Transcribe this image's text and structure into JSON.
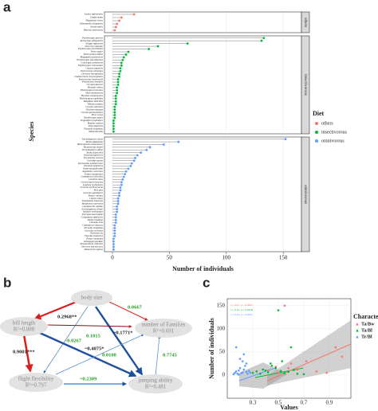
{
  "panel_labels": [
    "a",
    "b",
    "c"
  ],
  "chart_data": [
    {
      "type": "lollipop",
      "xlabel": "Number of individuals",
      "ylabel": "Species",
      "legend_title": "Diet",
      "xlim": [
        -7,
        166
      ],
      "xticks": [
        0,
        50,
        100,
        150
      ],
      "grid": true,
      "series": [
        {
          "name": "others",
          "color": "#f8766d",
          "categories": [
            "Lanius tephronotus",
            "Upupa epops",
            "Megalaima virens",
            "Arborophila rufogularis",
            "Alcedo atthis",
            "Halcyon smyrnensis"
          ],
          "values": [
            19,
            8,
            6,
            4,
            3,
            2
          ]
        },
        {
          "name": "insectivorous",
          "color": "#00ba38",
          "categories": [
            "Phylloscopus pulcher",
            "Abroscopus albogularis",
            "Alcippe nipalensis",
            "Seicercus valentini",
            "Phylloscopus trochiloides",
            "Parus major",
            "Phylloscopus affinis",
            "Rhopophilus pekinensis",
            "Phylloscopus maculipennis",
            "Culicicapa ceylonensis",
            "Phylloscopus chloronotus",
            "Cinnyris jugularis",
            "Pericrocotus ethologus",
            "Dicrurus leucophaeus",
            "Chaimarrornis leucocephalus",
            "Pericrocotus brevirostris",
            "Phoenicurus frontalis",
            "Cecropis daurica",
            "Hirundo rustica",
            "Phylloscopus inornatus",
            "Sitta himalayensis",
            "Hemixos castanonotus",
            "Phylloscopus reguloides",
            "Rhipidura albicollis",
            "Niltava sundara",
            "Cuculus saturatus",
            "Delichon dasypus",
            "Cuculus poliocephalus",
            "Picus canus",
            "Dendrocopos major",
            "Troglodytes troglodytes",
            "Regulus regulus",
            "Sitta nagaensis",
            "Ficedula strophiata",
            "Motacilla alba"
          ],
          "values": [
            133,
            131,
            66,
            40,
            32,
            14,
            12,
            10,
            9,
            8,
            8,
            7,
            7,
            6,
            6,
            5,
            5,
            5,
            4,
            4,
            4,
            3,
            3,
            3,
            3,
            2,
            2,
            2,
            2,
            2,
            1,
            1,
            1,
            1,
            1
          ]
        },
        {
          "name": "omnivorous",
          "color": "#619cff",
          "categories": [
            "Trochalopteron milnei",
            "Yuhina diademata",
            "Heterophasia melanoleuca",
            "Myzornis pyrrhoura",
            "Trochalopteron affine",
            "Yuhina flavicollis",
            "Zosterops japonicus",
            "Pycnonotus jocosus",
            "Garrulax sannio",
            "Pycnonotus xanthorrhous",
            "Dicaeum ignipectus",
            "Emberiza godlewskii",
            "Aegithalos concinnus",
            "Turdus mandarinus",
            "Carpodacus erythrinus",
            "Leiothrix lutea",
            "Corvus macrorhynchos",
            "Lophura nycthemera",
            "Urocissa erythroryncha",
            "Pica pica",
            "Garrulus glandarius",
            "Passer rutilans",
            "Chloris sinica",
            "Streptopelia chinensis",
            "Myophonus caeruleus",
            "Leptopoecile sophiae",
            "Trochalopteron elliotii",
            "Spizixos semitorques",
            "Pucrasia macrolopha",
            "Carpodacus nipalensis",
            "Turdus boulboul",
            "Columba livia",
            "Carpodacus vinaceus",
            "Prunella strophiata",
            "Garrulax ocellatus",
            "Emberiza cia",
            "Fulvetta vinipectus",
            "Passer montanus",
            "Aethopyga gouldiae",
            "Pomatorhinus ruficollis",
            "Dicrurus macrocercus",
            "Tadorna ferruginea"
          ],
          "values": [
            152,
            58,
            45,
            33,
            30,
            25,
            22,
            20,
            19,
            17,
            16,
            14,
            12,
            11,
            10,
            9,
            8,
            8,
            7,
            7,
            6,
            6,
            5,
            5,
            5,
            4,
            4,
            4,
            3,
            3,
            3,
            3,
            2,
            2,
            2,
            2,
            2,
            1,
            1,
            1,
            1,
            1
          ]
        }
      ]
    },
    {
      "type": "scatter",
      "xlabel": "Values",
      "ylabel": "Number of individuals",
      "legend_title": "Characteristics",
      "xlim": [
        0.1,
        1.07
      ],
      "ylim": [
        -50,
        165
      ],
      "xticks": [
        0.3,
        0.5,
        0.7,
        0.9
      ],
      "yticks": [
        0,
        50,
        100,
        150
      ],
      "grid": true,
      "annotations": [
        "r = 0.27, p = 0.0005",
        "r = 0.19, p = 0.0416",
        "r = 0.43, p = 0.0001"
      ],
      "series": [
        {
          "name": "Ta/Bw",
          "color": "#f8766d",
          "x": [
            0.42,
            0.48,
            0.55,
            0.6,
            0.65,
            0.72,
            0.8,
            0.88,
            0.95,
            1.0,
            0.5,
            0.58
          ],
          "values": [
            10,
            18,
            150,
            25,
            12,
            30,
            8,
            5,
            60,
            40,
            4,
            15
          ]
        },
        {
          "name": "Ta/Bl",
          "color": "#00ba38",
          "x": [
            0.3,
            0.33,
            0.36,
            0.38,
            0.4,
            0.42,
            0.45,
            0.48,
            0.5,
            0.52,
            0.55,
            0.58,
            0.6,
            0.62,
            0.65,
            0.7,
            0.53,
            0.44
          ],
          "values": [
            5,
            8,
            3,
            12,
            10,
            6,
            20,
            15,
            140,
            9,
            4,
            7,
            60,
            11,
            3,
            2,
            30,
            25
          ]
        },
        {
          "name": "Tr/Bl",
          "color": "#619cff",
          "x": [
            0.15,
            0.16,
            0.17,
            0.18,
            0.19,
            0.2,
            0.21,
            0.22,
            0.23,
            0.24,
            0.25,
            0.26,
            0.27,
            0.28,
            0.17,
            0.2,
            0.22,
            0.25,
            0.19,
            0.23
          ],
          "values": [
            2,
            5,
            8,
            3,
            10,
            15,
            4,
            6,
            12,
            20,
            7,
            3,
            9,
            5,
            60,
            35,
            30,
            25,
            1,
            45
          ]
        }
      ]
    }
  ],
  "diagram": {
    "nodes": [
      {
        "label": "body size"
      },
      {
        "label": "bill length",
        "r2": "R²=0.088"
      },
      {
        "label": "number of Families",
        "r2": "R²=0.691"
      },
      {
        "label": "flight flexibility",
        "r2": "R²=0.797"
      },
      {
        "label": "jumping ability",
        "r2": "R²=0.481"
      }
    ],
    "edges": [
      {
        "label": "0.2968**"
      },
      {
        "label": "0.0667"
      },
      {
        "label": "0.1015"
      },
      {
        "label": "-0.0267"
      },
      {
        "label": "~0.4075*"
      },
      {
        "label": "~0.1771*"
      },
      {
        "label": "0.9001***"
      },
      {
        "label": "0.0108"
      },
      {
        "label": "0.7745"
      },
      {
        "label": "~0.2309"
      }
    ]
  }
}
